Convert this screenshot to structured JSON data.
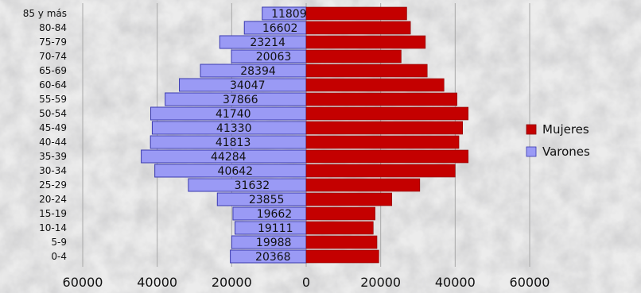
{
  "chart_data": {
    "type": "bar",
    "orientation": "horizontal",
    "layout": "population-pyramid",
    "categories": [
      "85 y más",
      "80-84",
      "75-79",
      "70-74",
      "65-69",
      "60-64",
      "55-59",
      "50-54",
      "45-49",
      "40-44",
      "35-39",
      "30-34",
      "25-29",
      "20-24",
      "15-19",
      "10-14",
      "5-9",
      "0-4"
    ],
    "series": [
      {
        "name": "Varones",
        "color": "#9a9af5",
        "values": [
          11809,
          16602,
          23214,
          20063,
          28394,
          34047,
          37866,
          41740,
          41330,
          41813,
          44284,
          40642,
          31632,
          23855,
          19662,
          19111,
          19988,
          20368
        ]
      },
      {
        "name": "Mujeres",
        "color": "#c40000",
        "values": [
          27000,
          28000,
          32000,
          25500,
          32500,
          37000,
          40500,
          43500,
          42000,
          41000,
          43500,
          40000,
          30500,
          23000,
          18500,
          18000,
          19000,
          19500
        ]
      }
    ],
    "x_ticks": [
      "60000",
      "40000",
      "20000",
      "0",
      "20000",
      "40000",
      "60000"
    ],
    "xlim": [
      -60000,
      60000
    ],
    "grid": true,
    "legend": "right"
  }
}
